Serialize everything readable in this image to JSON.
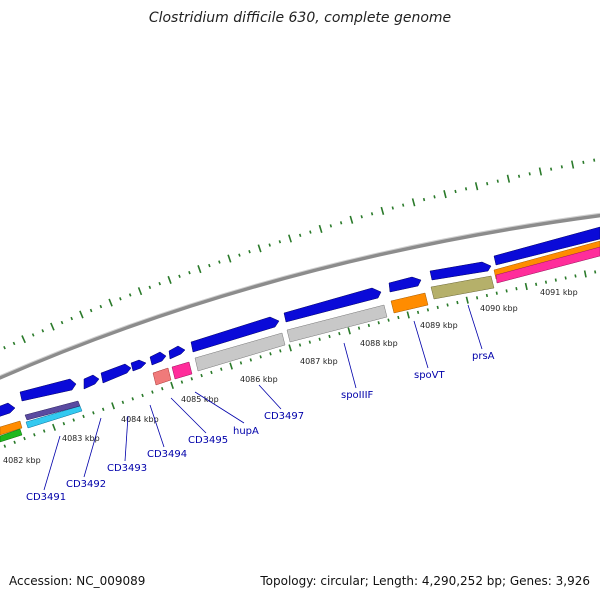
{
  "title": "Clostridium difficile 630, complete genome",
  "accession": "Accession: NC_009089",
  "summary": "Topology: circular; Length: 4,290,252 bp; Genes: 3,926",
  "kbp_labels": [
    "4082 kbp",
    "4083 kbp",
    "4084 kbp",
    "4085 kbp",
    "4086 kbp",
    "4087 kbp",
    "4088 kbp",
    "4089 kbp",
    "4090 kbp",
    "4091 kbp"
  ],
  "gene_labels": [
    "CD3491",
    "CD3492",
    "CD3493",
    "CD3494",
    "CD3495",
    "hupA",
    "CD3497",
    "spoIIIF",
    "spoVT",
    "prsA"
  ],
  "colors": {
    "backbone": "#8c8c8c",
    "cds": "#0a0ad8",
    "gray_feature": "#c8c8c8",
    "orange_feature": "#ff8c00",
    "olive_feature": "#b5b06a",
    "pink_feature": "#ff2d9b",
    "salmon_feature": "#f07a7a",
    "cyan_feature": "#33c9f0",
    "green_feature": "#1fb81f",
    "purple_feature": "#5a4aa0",
    "ticks": "#2a7a2a",
    "gene_label": "#0000aa"
  }
}
